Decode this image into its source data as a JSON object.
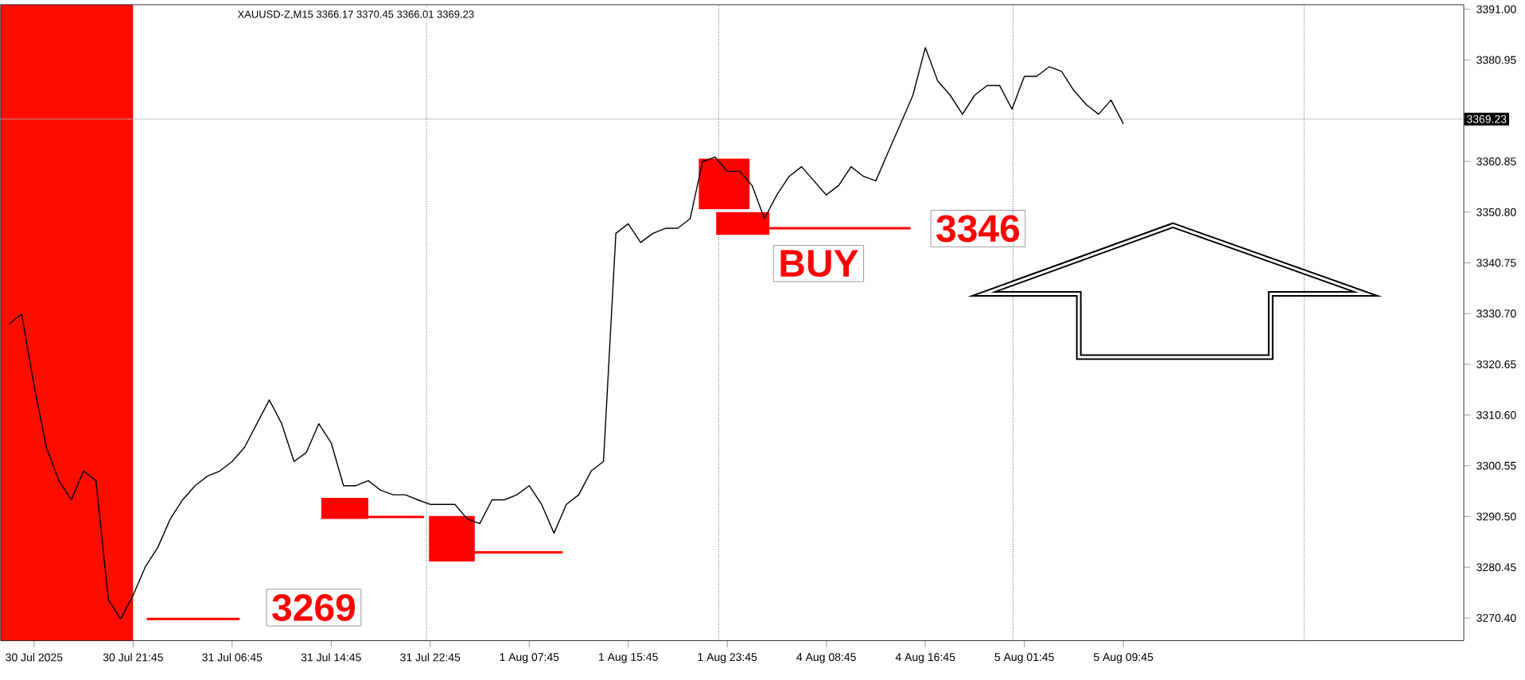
{
  "chart_data": {
    "type": "line",
    "title": "XAUUSD-Z,M15 3366.17 3370.45 3366.01 3369.23",
    "categories": [
      null,
      null,
      "30 Jul 2025",
      null,
      null,
      null,
      null,
      null,
      null,
      null,
      "30 Jul 21:45",
      null,
      null,
      null,
      null,
      null,
      null,
      null,
      "31 Jul 06:45",
      null,
      null,
      null,
      null,
      null,
      null,
      null,
      "31 Jul 14:45",
      null,
      null,
      null,
      null,
      null,
      null,
      null,
      "31 Jul 22:45",
      null,
      null,
      null,
      null,
      null,
      null,
      null,
      "1 Aug 07:45",
      null,
      null,
      null,
      null,
      null,
      null,
      null,
      "1 Aug 15:45",
      null,
      null,
      null,
      null,
      null,
      null,
      null,
      "1 Aug 23:45",
      null,
      null,
      null,
      null,
      null,
      null,
      null,
      "4 Aug 08:45",
      null,
      null,
      null,
      null,
      null,
      null,
      null,
      "4 Aug 16:45",
      null,
      null,
      null,
      null,
      null,
      null,
      null,
      "5 Aug 01:45",
      null,
      null,
      null,
      null,
      null,
      null,
      null,
      "5 Aug 09:45",
      null,
      null,
      null,
      null,
      null,
      null,
      null,
      null,
      null,
      null,
      null,
      null,
      null,
      null,
      null,
      null,
      null,
      null,
      null,
      null,
      null,
      null,
      null,
      null,
      null,
      null,
      null
    ],
    "series": [
      {
        "color": "#000000",
        "values": [
          3328.7,
          3330.6,
          3316.4,
          3304.2,
          3297.6,
          3293.8,
          3299.5,
          3297.6,
          3274.0,
          3270.2,
          3274.9,
          3280.6,
          3284.4,
          3290.0,
          3293.8,
          3296.6,
          3298.5,
          3299.5,
          3301.4,
          3304.2,
          3308.9,
          3313.6,
          3308.9,
          3301.4,
          3303.2,
          3308.9,
          3305.1,
          3296.6,
          3296.6,
          3297.6,
          3295.7,
          3294.8,
          3294.8,
          3293.8,
          3292.9,
          3292.9,
          3292.9,
          3290.0,
          3289.1,
          3293.8,
          3293.8,
          3294.8,
          3296.6,
          3292.9,
          3287.2,
          3292.9,
          3294.8,
          3299.5,
          3301.4,
          3346.6,
          3348.5,
          3344.8,
          3346.6,
          3347.6,
          3347.6,
          3349.5,
          3360.8,
          3361.7,
          3358.9,
          3358.9,
          3356.1,
          3349.5,
          3354.2,
          3357.9,
          3359.8,
          3357.0,
          3354.2,
          3356.1,
          3359.8,
          3357.9,
          3357.0,
          3362.7,
          3368.3,
          3374.0,
          3383.4,
          3376.8,
          3374.0,
          3370.2,
          3374.0,
          3375.9,
          3375.9,
          3371.2,
          3377.7,
          3377.7,
          3379.6,
          3378.7,
          3374.9,
          3372.1,
          3370.2,
          3373.0,
          3368.3,
          null,
          null,
          null,
          null,
          null,
          null,
          null,
          null,
          null,
          null,
          null,
          null,
          null,
          null,
          null,
          null,
          null,
          null,
          null,
          null,
          null,
          null,
          null,
          null,
          null,
          null,
          null
        ]
      }
    ],
    "ylim": [
      3265.9,
      3391.9
    ],
    "yticks": [
      {
        "value": 3270.4,
        "label": "3270.40"
      },
      {
        "value": 3280.45,
        "label": "3280.45"
      },
      {
        "value": 3290.5,
        "label": "3290.50"
      },
      {
        "value": 3300.55,
        "label": "3300.55"
      },
      {
        "value": 3310.6,
        "label": "3310.60"
      },
      {
        "value": 3320.65,
        "label": "3320.65"
      },
      {
        "value": 3330.7,
        "label": "3330.70"
      },
      {
        "value": 3340.75,
        "label": "3340.75"
      },
      {
        "value": 3350.8,
        "label": "3350.80"
      },
      {
        "value": 3360.85,
        "label": "3360.85"
      },
      {
        "value": 3380.95,
        "label": "3380.95"
      },
      {
        "value": 3391.0,
        "label": "3391.00"
      }
    ],
    "ref_lines": [
      {
        "axis": "y",
        "value": 3369.23,
        "label": "3369.23",
        "color": "#b0b0b0",
        "line_style": "solid"
      }
    ],
    "annotations": [
      "3269",
      "BUY",
      "3346"
    ]
  }
}
